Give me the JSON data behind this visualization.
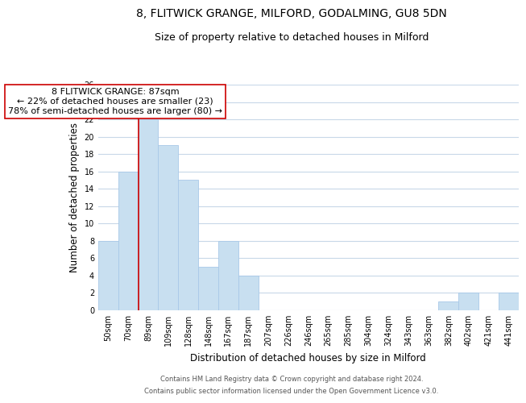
{
  "title_line1": "8, FLITWICK GRANGE, MILFORD, GODALMING, GU8 5DN",
  "title_line2": "Size of property relative to detached houses in Milford",
  "xlabel": "Distribution of detached houses by size in Milford",
  "ylabel": "Number of detached properties",
  "categories": [
    "50sqm",
    "70sqm",
    "89sqm",
    "109sqm",
    "128sqm",
    "148sqm",
    "167sqm",
    "187sqm",
    "207sqm",
    "226sqm",
    "246sqm",
    "265sqm",
    "285sqm",
    "304sqm",
    "324sqm",
    "343sqm",
    "363sqm",
    "382sqm",
    "402sqm",
    "421sqm",
    "441sqm"
  ],
  "values": [
    8,
    16,
    22,
    19,
    15,
    5,
    8,
    4,
    0,
    0,
    0,
    0,
    0,
    0,
    0,
    0,
    0,
    1,
    2,
    0,
    2
  ],
  "bar_color": "#c8dff0",
  "bar_edge_color": "#a8c8e8",
  "vline_color": "#cc0000",
  "annotation_box_text": "8 FLITWICK GRANGE: 87sqm\n← 22% of detached houses are smaller (23)\n78% of semi-detached houses are larger (80) →",
  "annotation_box_edge_color": "#cc0000",
  "annotation_box_bg": "#ffffff",
  "ylim": [
    0,
    26
  ],
  "yticks": [
    0,
    2,
    4,
    6,
    8,
    10,
    12,
    14,
    16,
    18,
    20,
    22,
    24,
    26
  ],
  "footer_line1": "Contains HM Land Registry data © Crown copyright and database right 2024.",
  "footer_line2": "Contains public sector information licensed under the Open Government Licence v3.0.",
  "bg_color": "#ffffff",
  "grid_color": "#c8d8e8",
  "title_fontsize": 10,
  "subtitle_fontsize": 9,
  "axis_label_fontsize": 8.5,
  "tick_fontsize": 7,
  "annotation_fontsize": 8,
  "footer_fontsize": 6
}
